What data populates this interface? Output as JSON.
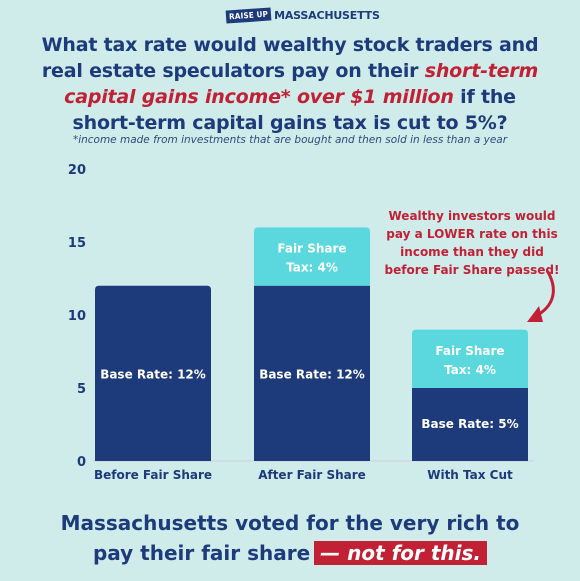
{
  "logo": {
    "badge": "RAISE UP",
    "name": "MASSACHUSETTS"
  },
  "headline": {
    "part1": "What tax rate would wealthy stock traders and real estate speculators pay on their ",
    "highlight": "short-term capital gains income* over $1 million",
    "part2": " if the short-term capital gains tax is cut to 5%?"
  },
  "footnote": "*income made from investments that are bought and then sold in less than a year",
  "callout": "Wealthy investors would pay a LOWER rate on this income than they did before Fair Share passed!",
  "bottom": {
    "line1": "Massachusetts voted for the very rich to",
    "line2": "pay their fair share",
    "strike": "— not for this."
  },
  "colors": {
    "base": "#1d3a7a",
    "fair_share": "#5bd8de",
    "background": "#cfeceb",
    "accent_red": "#c22035"
  },
  "chart_data": {
    "type": "bar",
    "stacked": true,
    "categories": [
      "Before Fair Share",
      "After Fair Share",
      "With Tax Cut"
    ],
    "series": [
      {
        "name": "Base Rate",
        "values": [
          12,
          12,
          5
        ],
        "labels": [
          "Base Rate: 12%",
          "Base Rate: 12%",
          "Base Rate: 5%"
        ]
      },
      {
        "name": "Fair Share Tax",
        "values": [
          0,
          4,
          4
        ],
        "labels": [
          "",
          "Fair Share\nTax: 4%",
          "Fair Share\nTax: 4%"
        ]
      }
    ],
    "yticks": [
      "0",
      "5",
      "10",
      "15",
      "20"
    ],
    "ylim": [
      0,
      20
    ],
    "grid": false
  }
}
